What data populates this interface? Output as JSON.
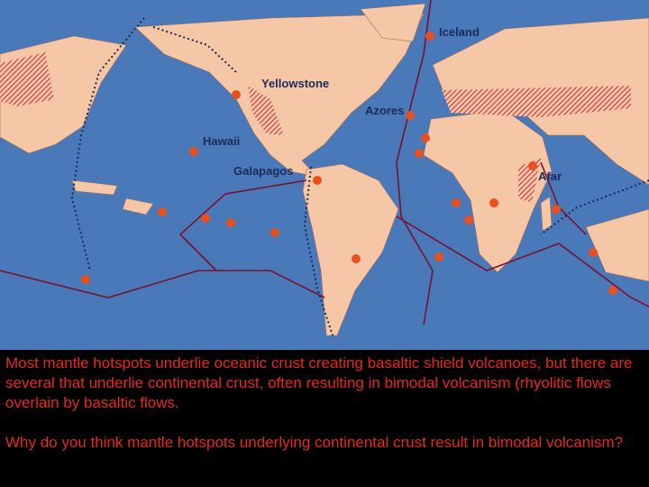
{
  "map": {
    "labels": [
      "Iceland",
      "Yellowstone",
      "Azores",
      "Hawaii",
      "Galapagos",
      "Afar"
    ]
  },
  "caption": {
    "paragraphs": [
      "Most mantle hotspots underlie oceanic crust creating basaltic shield volcanoes, but there are several that underlie continental crust, often resulting in bimodal volcanism (rhyolitic flows overlain by basaltic flows.",
      "Why do you think mantle hotspots underlying continental crust result in bimodal volcanism?"
    ]
  }
}
